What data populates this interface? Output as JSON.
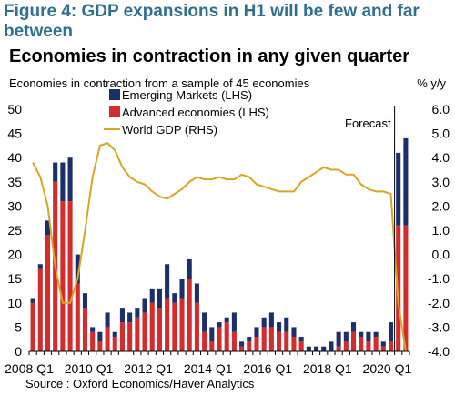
{
  "figure_title": "Figure 4: GDP expansions in H1 will be few and far between",
  "subtitle": "Economies in contraction in any given quarter",
  "source": "Source : Oxford Economics/Haver Analytics",
  "chart_data": {
    "type": "bar",
    "title": "Economies in contraction in any given quarter",
    "ylabel_left": "Economies in contraction from a sample of 45 economies",
    "ylabel_right": "% y/y",
    "forecast_label": "Forecast",
    "stacked": true,
    "ylim_left": [
      0,
      50
    ],
    "ylim_right": [
      -4.0,
      6.0
    ],
    "yticks_left": [
      "0",
      "5",
      "10",
      "15",
      "20",
      "25",
      "30",
      "35",
      "40",
      "45",
      "50"
    ],
    "yticks_right": [
      "-4.0",
      "-3.0",
      "-2.0",
      "-1.0",
      "0.0",
      "1.0",
      "2.0",
      "3.0",
      "4.0",
      "5.0",
      "6.0"
    ],
    "xtick_labels": [
      "2008 Q1",
      "2010 Q1",
      "2012 Q1",
      "2014 Q1",
      "2016 Q1",
      "2018 Q1",
      "2020 Q1"
    ],
    "quarters": [
      "2008Q1",
      "2008Q2",
      "2008Q3",
      "2008Q4",
      "2009Q1",
      "2009Q2",
      "2009Q3",
      "2009Q4",
      "2010Q1",
      "2010Q2",
      "2010Q3",
      "2010Q4",
      "2011Q1",
      "2011Q2",
      "2011Q3",
      "2011Q4",
      "2012Q1",
      "2012Q2",
      "2012Q3",
      "2012Q4",
      "2013Q1",
      "2013Q2",
      "2013Q3",
      "2013Q4",
      "2014Q1",
      "2014Q2",
      "2014Q3",
      "2014Q4",
      "2015Q1",
      "2015Q2",
      "2015Q3",
      "2015Q4",
      "2016Q1",
      "2016Q2",
      "2016Q3",
      "2016Q4",
      "2017Q1",
      "2017Q2",
      "2017Q3",
      "2017Q4",
      "2018Q1",
      "2018Q2",
      "2018Q3",
      "2018Q4",
      "2019Q1",
      "2019Q2",
      "2019Q3",
      "2019Q4",
      "2020Q1",
      "2020Q2",
      "2020Q3"
    ],
    "forecast_start": "2020Q2",
    "series": [
      {
        "name": "Emerging Markets (LHS)",
        "axis": "left",
        "color": "#1b2f6b",
        "values": [
          1,
          1,
          3,
          4,
          8,
          9,
          6,
          3,
          1,
          2,
          3,
          1,
          3,
          2,
          2,
          3,
          3,
          4,
          7,
          2,
          4,
          4,
          4,
          4,
          3,
          1,
          1,
          4,
          1,
          1,
          2,
          2,
          3,
          2,
          3,
          2,
          1,
          1,
          1,
          1,
          2,
          3,
          2,
          2,
          1,
          2,
          1,
          1,
          4,
          15,
          18
        ]
      },
      {
        "name": "Advanced economies (LHS)",
        "axis": "left",
        "color": "#d42c2c",
        "values": [
          10,
          17,
          24,
          35,
          31,
          31,
          14,
          9,
          4,
          2,
          5,
          3,
          6,
          6,
          7,
          8,
          10,
          9,
          11,
          10,
          11,
          15,
          10,
          4,
          2,
          5,
          6,
          4,
          1,
          2,
          3,
          5,
          5,
          4,
          4,
          3,
          2,
          0,
          0,
          0,
          0,
          1,
          2,
          4,
          3,
          2,
          3,
          1,
          2,
          26,
          26
        ]
      },
      {
        "name": "World GDP (RHS)",
        "axis": "right",
        "type": "line",
        "color": "#d9a522",
        "values": [
          3.8,
          3.2,
          2.0,
          -0.5,
          -2.0,
          -2.0,
          -1.0,
          1.0,
          3.2,
          4.5,
          4.6,
          4.3,
          3.6,
          3.2,
          3.0,
          2.9,
          2.6,
          2.4,
          2.3,
          2.5,
          2.7,
          3.0,
          3.2,
          3.1,
          3.1,
          3.2,
          3.1,
          3.1,
          3.3,
          3.2,
          2.9,
          2.8,
          2.7,
          2.6,
          2.6,
          2.6,
          3.0,
          3.2,
          3.4,
          3.6,
          3.5,
          3.5,
          3.3,
          3.3,
          2.9,
          2.7,
          2.6,
          2.6,
          2.5,
          -2.0,
          -4.0
        ]
      }
    ],
    "grid": false,
    "legend_placement": "top-center"
  }
}
